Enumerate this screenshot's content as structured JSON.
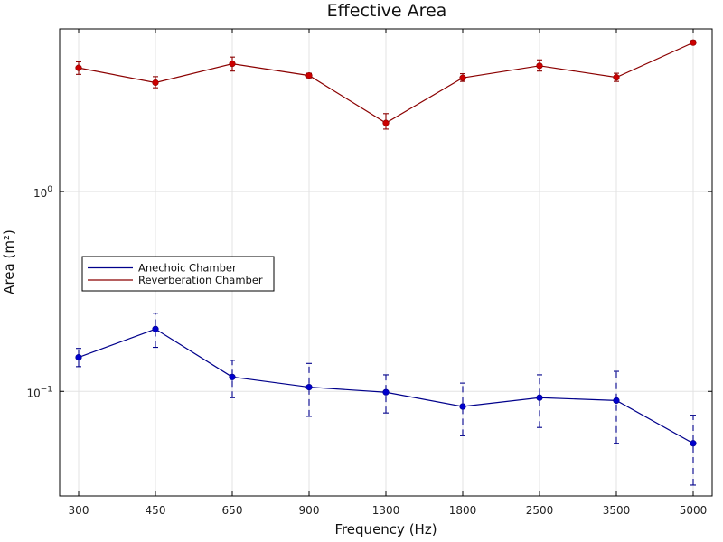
{
  "chart_data": {
    "type": "line",
    "title": "Effective Area",
    "xlabel": "Frequency (Hz)",
    "ylabel": "Area (m²)",
    "x_scale": "categorical",
    "y_scale": "log",
    "ylim": [
      0.03,
      6.5
    ],
    "grid": true,
    "legend_position": "center-left",
    "categories": [
      "300",
      "450",
      "650",
      "900",
      "1300",
      "1800",
      "2500",
      "3500",
      "5000"
    ],
    "y_ticks": [
      {
        "value": 1,
        "base": "10",
        "exp": "0"
      },
      {
        "value": 0.1,
        "base": "10",
        "exp": "−1"
      }
    ],
    "series": [
      {
        "name": "Anechoic Chamber",
        "color": "#00008b",
        "marker_color": "#0000cd",
        "error_style": "dashed",
        "values": [
          0.148,
          0.205,
          0.118,
          0.105,
          0.099,
          0.084,
          0.093,
          0.09,
          0.055
        ],
        "err_low": [
          0.133,
          0.166,
          0.093,
          0.075,
          0.078,
          0.06,
          0.066,
          0.055,
          0.034
        ],
        "err_high": [
          0.164,
          0.246,
          0.143,
          0.138,
          0.121,
          0.11,
          0.121,
          0.126,
          0.076
        ]
      },
      {
        "name": "Reverberation Chamber",
        "color": "#8b0000",
        "marker_color": "#cc0000",
        "error_style": "solid",
        "values": [
          4.15,
          3.5,
          4.35,
          3.8,
          2.2,
          3.7,
          4.25,
          3.72,
          5.55
        ],
        "err_low": [
          3.85,
          3.3,
          4.0,
          3.7,
          2.05,
          3.55,
          4.0,
          3.55,
          5.45
        ],
        "err_high": [
          4.45,
          3.75,
          4.7,
          3.9,
          2.45,
          3.88,
          4.55,
          3.9,
          5.68
        ]
      }
    ]
  }
}
